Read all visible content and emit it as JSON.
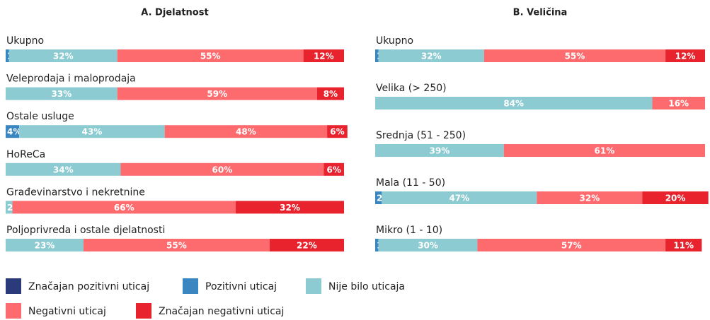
{
  "chart_data": [
    {
      "type": "stacked-bar-horizontal",
      "title": "A. Djelatnost",
      "xlim": [
        0,
        100
      ],
      "categories": [
        "Ukupno",
        "Veleprodaja i maloprodaja",
        "Ostale usluge",
        "HoReCa",
        "Građevinarstvo i nekretnine",
        "Poljoprivreda i ostale djelatnosti"
      ],
      "series": [
        {
          "name": "Značajan pozitivni uticaj",
          "color": "#2b3a7a",
          "values": [
            0,
            0,
            0,
            0,
            0,
            0
          ],
          "value_labels": [
            null,
            null,
            null,
            null,
            null,
            null
          ]
        },
        {
          "name": "Pozitivni uticaj",
          "color": "#3a86c0",
          "values": [
            1,
            0,
            4,
            0,
            0,
            0
          ],
          "value_labels": [
            "1%",
            null,
            "4%",
            null,
            null,
            null
          ]
        },
        {
          "name": "Nije bilo uticaja",
          "color": "#8ccbd1",
          "values": [
            32,
            33,
            43,
            34,
            2,
            23
          ],
          "value_labels": [
            "32%",
            "33%",
            "43%",
            "34%",
            "2%",
            "23%"
          ]
        },
        {
          "name": "Negativni uticaj",
          "color": "#fe6b6f",
          "values": [
            55,
            59,
            48,
            60,
            66,
            55
          ],
          "value_labels": [
            "55%",
            "59%",
            "48%",
            "60%",
            "66%",
            "55%"
          ]
        },
        {
          "name": "Značajan negativni uticaj",
          "color": "#e8232e",
          "values": [
            12,
            8,
            6,
            6,
            32,
            22
          ],
          "value_labels": [
            "12%",
            "8%",
            "6%",
            "6%",
            "32%",
            "22%"
          ]
        }
      ]
    },
    {
      "type": "stacked-bar-horizontal",
      "title": "B. Veličina",
      "xlim": [
        0,
        100
      ],
      "categories": [
        "Ukupno",
        "Velika (> 250)",
        "Srednja (51 - 250)",
        "Mala (11 - 50)",
        "Mikro (1 - 10)"
      ],
      "series": [
        {
          "name": "Značajan pozitivni uticaj",
          "color": "#2b3a7a",
          "values": [
            0,
            0,
            0,
            0,
            0
          ],
          "value_labels": [
            null,
            null,
            null,
            null,
            null
          ]
        },
        {
          "name": "Pozitivni uticaj",
          "color": "#3a86c0",
          "values": [
            1,
            0,
            0,
            2,
            1
          ],
          "value_labels": [
            "1%",
            null,
            null,
            "2%",
            "1%"
          ]
        },
        {
          "name": "Nije bilo uticaja",
          "color": "#8ccbd1",
          "values": [
            32,
            84,
            39,
            47,
            30
          ],
          "value_labels": [
            "32%",
            "84%",
            "39%",
            "47%",
            "30%"
          ]
        },
        {
          "name": "Negativni uticaj",
          "color": "#fe6b6f",
          "values": [
            55,
            16,
            61,
            32,
            57
          ],
          "value_labels": [
            "55%",
            "16%",
            "61%",
            "32%",
            "57%"
          ]
        },
        {
          "name": "Značajan negativni uticaj",
          "color": "#e8232e",
          "values": [
            12,
            0,
            0,
            20,
            11
          ],
          "value_labels": [
            "12%",
            null,
            null,
            "20%",
            "11%"
          ]
        }
      ]
    }
  ]
}
